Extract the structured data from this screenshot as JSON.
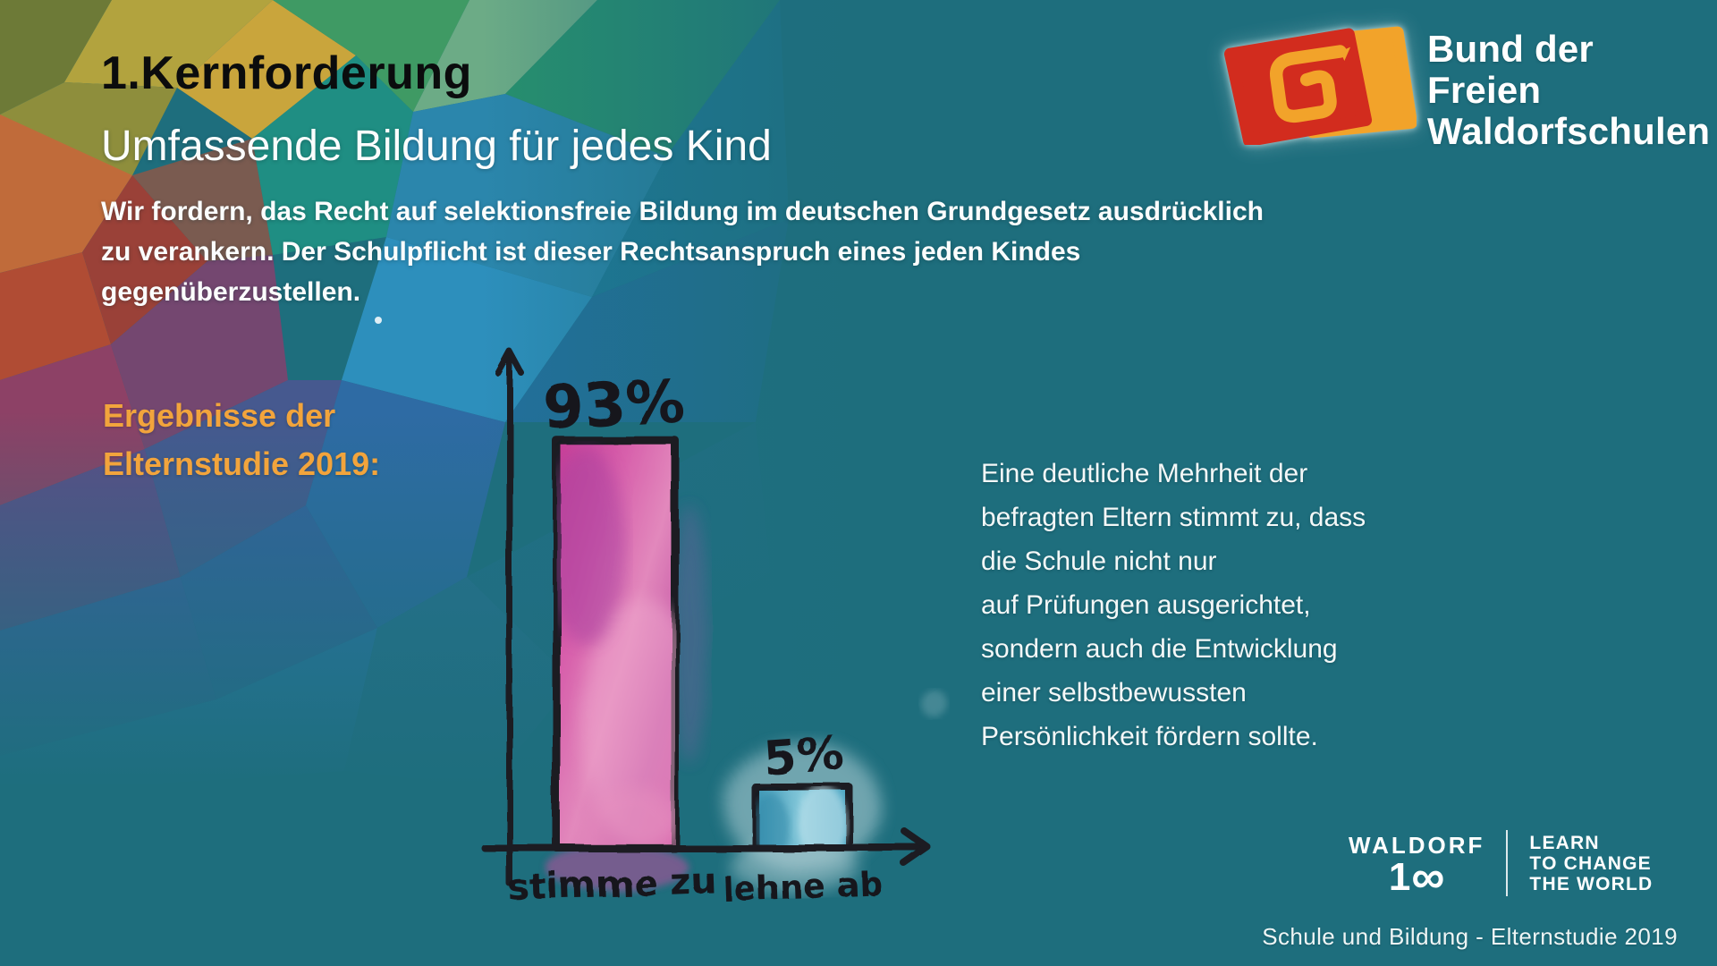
{
  "slide": {
    "kicker": "1.Kernforderung",
    "title": "Umfassende Bildung für jedes Kind",
    "body_lines": [
      "Wir fordern, das Recht auf selektionsfreie Bildung im deutschen Grundgesetz ausdrücklich",
      "zu verankern. Der Schulpflicht ist dieser Rechtsanspruch eines jeden Kindes",
      "gegenüberzustellen."
    ],
    "results_label_lines": [
      "Ergebnisse der",
      "Elternstudie 2019:"
    ],
    "commentary_lines": [
      "Eine deutliche Mehrheit der",
      "befragten Eltern stimmt zu, dass",
      "die Schule nicht nur",
      "auf Prüfungen ausgerichtet,",
      "sondern auch die Entwicklung",
      "einer selbstbewussten",
      "Persönlichkeit fördern sollte."
    ],
    "caption": "Schule und Bildung - Elternstudie 2019"
  },
  "brand": {
    "logo_line1": "Bund der Freien",
    "logo_line2": "Waldorfschulen",
    "logo_red": "#d22c1e",
    "logo_orange": "#f2a32a"
  },
  "waldorf100": {
    "word": "WALDORF",
    "number_prefix": "1",
    "infinity": "∞",
    "tagline_lines": [
      "LEARN",
      "TO CHANGE",
      "THE WORLD"
    ]
  },
  "colors": {
    "background_teal": "#1e6e7d",
    "accent_orange": "#f2a43c",
    "ink_black": "#15171d",
    "text_white": "#fbfdfd"
  },
  "chart_data": {
    "type": "bar",
    "style": "hand-drawn watercolor marker sketch",
    "categories": [
      "stimme zu",
      "lehne ab"
    ],
    "values": [
      93,
      5
    ],
    "value_labels": [
      "93%",
      "5%"
    ],
    "unit": "%",
    "ylim": [
      0,
      100
    ],
    "axes": "plain arrow axes, no ticks, no gridlines",
    "legend": "none",
    "bar_colors": [
      "#cf4da0",
      "#55a8c4"
    ]
  }
}
